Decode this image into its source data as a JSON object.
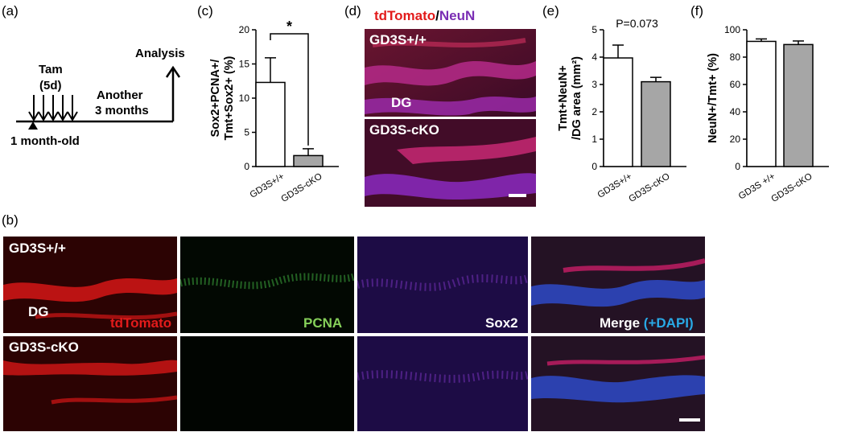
{
  "panel_labels": {
    "a": "(a)",
    "b": "(b)",
    "c": "(c)",
    "d": "(d)",
    "e": "(e)",
    "f": "(f)"
  },
  "timeline": {
    "tam": "Tam",
    "tam_days": "(5d)",
    "analysis": "Analysis",
    "another_1": "Another",
    "another_2": "3 months",
    "age": "1 month-old"
  },
  "panel_d": {
    "title_red": "tdTomato",
    "title_slash": "/",
    "title_purple": "NeuN",
    "top_label": "GD3S+/+",
    "dg_label": "DG",
    "bottom_label": "GD3S-cKO"
  },
  "panel_b": {
    "row1_label": "GD3S+/+",
    "row2_label": "GD3S-cKO",
    "dg_label": "DG",
    "col1": "tdTomato",
    "col2": "PCNA",
    "col3": "Sox2",
    "col4_a": "Merge ",
    "col4_b": "(+DAPI)"
  },
  "chart_data": [
    {
      "id": "c",
      "type": "bar",
      "ylabel_1": "Sox2+PCNA+/",
      "ylabel_2": "Tmt+Sox2+ (%)",
      "categories": [
        "GD3S+/+",
        "GD3S-cKO"
      ],
      "values": [
        12.3,
        1.6
      ],
      "errors": [
        3.6,
        1.0
      ],
      "ylim": [
        0,
        20
      ],
      "yticks": [
        "0",
        "5",
        "10",
        "15",
        "20"
      ],
      "significance": "*",
      "colors": [
        "#ffffff",
        "#a6a6a6"
      ]
    },
    {
      "id": "e",
      "type": "bar",
      "ylabel_1": "Tmt+NeuN+",
      "ylabel_2": "/DG area (mm²)",
      "categories": [
        "GD3S+/+",
        "GD3S-cKO"
      ],
      "values": [
        3.97,
        3.1
      ],
      "errors": [
        0.47,
        0.16
      ],
      "ylim": [
        0,
        5
      ],
      "yticks": [
        "0",
        "1",
        "2",
        "3",
        "4",
        "5"
      ],
      "annotation": "P=0.073",
      "colors": [
        "#ffffff",
        "#a6a6a6"
      ]
    },
    {
      "id": "f",
      "type": "bar",
      "ylabel_1": "NeuN+/Tmt+ (%)",
      "ylabel_2": "",
      "categories": [
        "GD3S +/+",
        "GD3S-cKO"
      ],
      "values": [
        91.5,
        89.2
      ],
      "errors": [
        1.8,
        2.6
      ],
      "ylim": [
        0,
        100
      ],
      "yticks": [
        "0",
        "20",
        "40",
        "60",
        "80",
        "100"
      ],
      "colors": [
        "#ffffff",
        "#a6a6a6"
      ]
    }
  ]
}
